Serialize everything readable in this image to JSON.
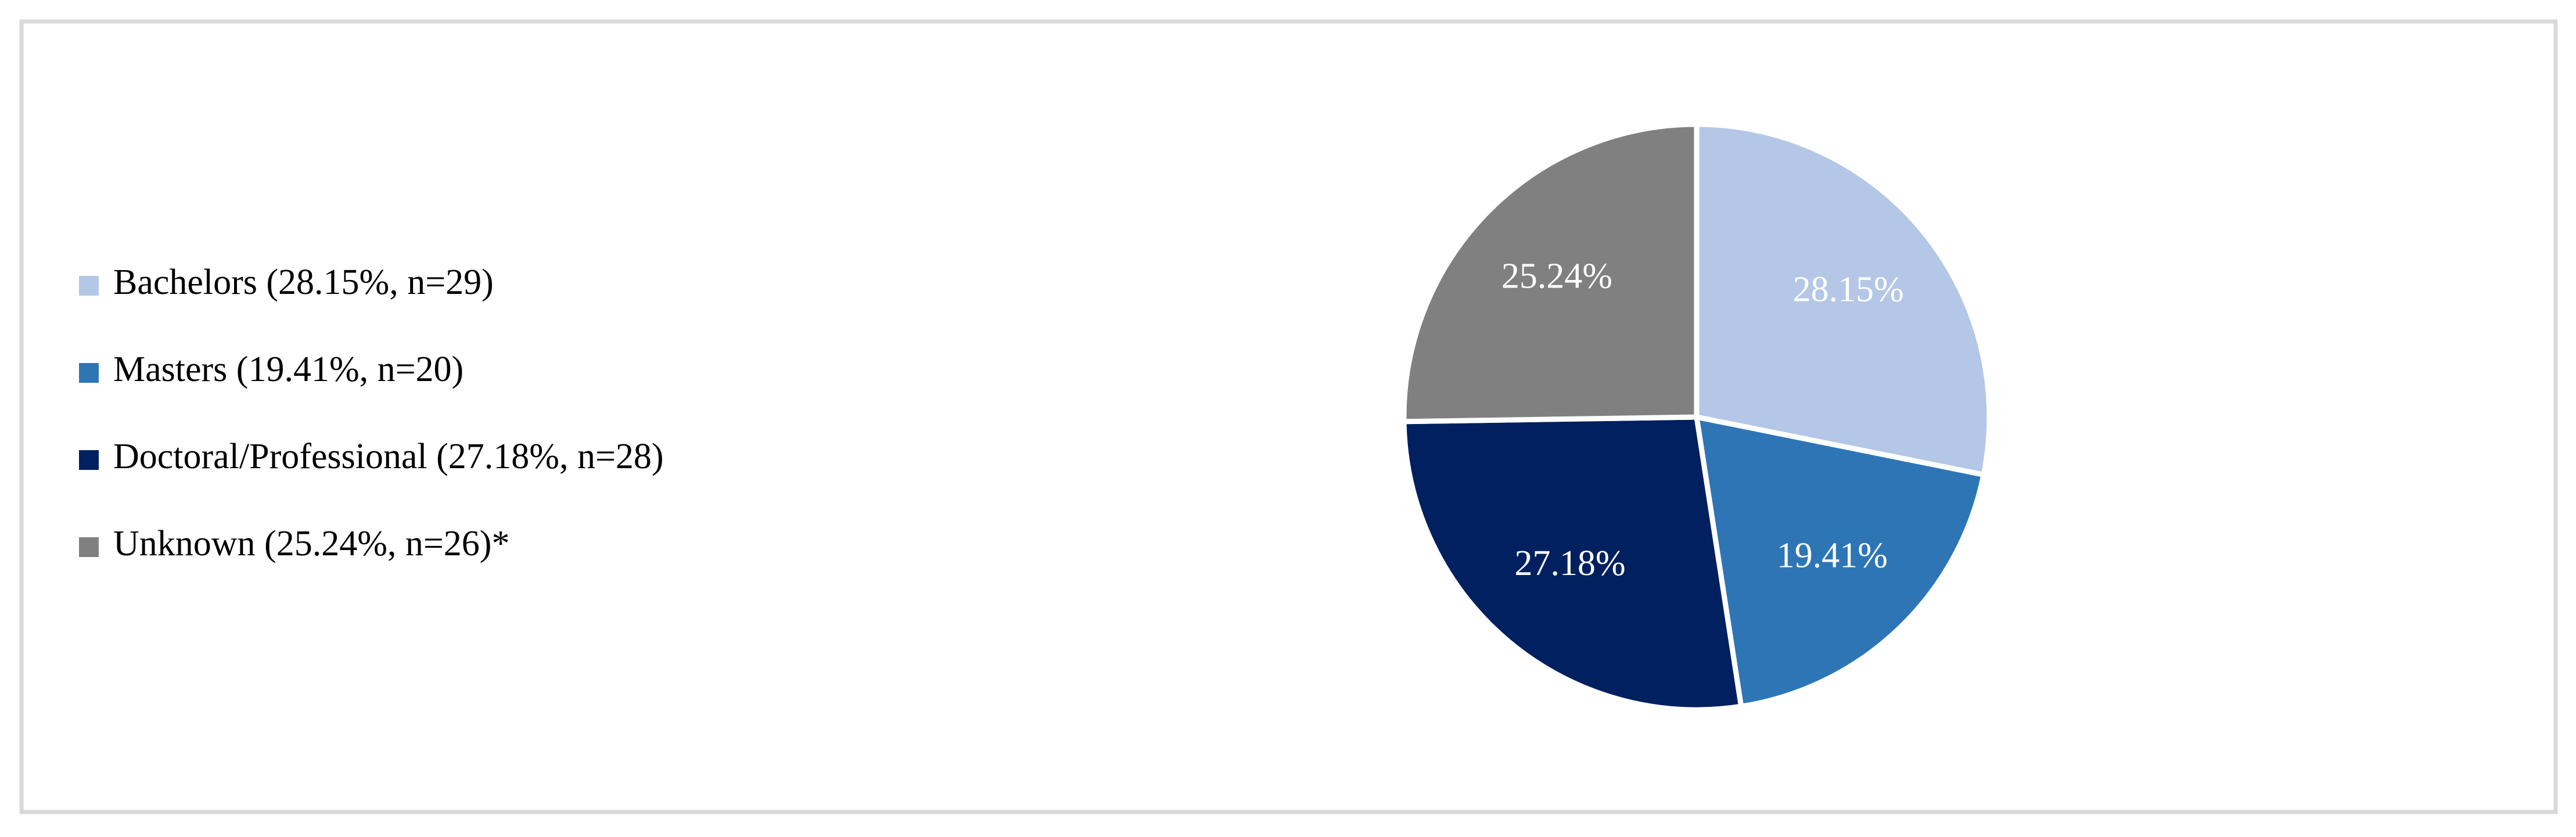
{
  "chart_data": {
    "type": "pie",
    "categories": [
      "Bachelors (28.15%, n=29)",
      "Masters (19.41%, n=20)",
      "Doctoral/Professional (27.18%, n=28)",
      "Unknown (25.24%, n=26)*"
    ],
    "values": [
      28.15,
      19.41,
      27.18,
      25.24
    ],
    "value_labels": [
      "28.15%",
      "19.41%",
      "27.18%",
      "25.24%"
    ],
    "colors": [
      "#b4c7e7",
      "#2e75b6",
      "#002060",
      "#808080"
    ],
    "legend": "left"
  }
}
